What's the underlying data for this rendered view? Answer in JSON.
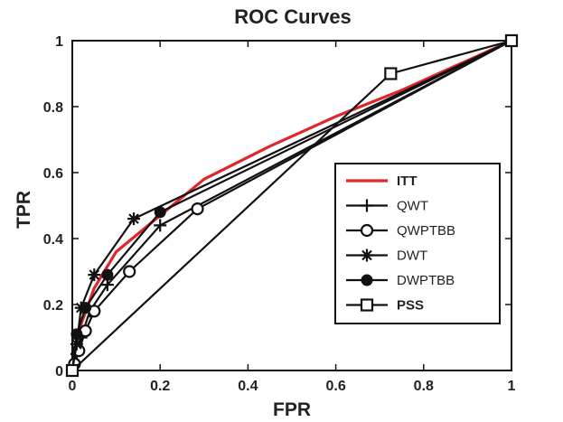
{
  "chart_data": {
    "type": "line",
    "title": "ROC Curves",
    "xlabel": "FPR",
    "ylabel": "TPR",
    "xlim": [
      0,
      1
    ],
    "ylim": [
      0,
      1
    ],
    "xticks": [
      "0",
      "0.2",
      "0.4",
      "0.6",
      "0.8",
      "1"
    ],
    "yticks": [
      "0",
      "0.2",
      "0.4",
      "0.6",
      "0.8",
      "1"
    ],
    "grid": false,
    "legend_position": "right",
    "series": [
      {
        "name": "ITT",
        "color": "#e0262b",
        "marker": "none",
        "bold": true,
        "x": [
          0,
          0.02,
          0.05,
          0.1,
          0.2,
          0.3,
          0.45,
          0.6,
          0.75,
          0.9,
          1
        ],
        "y": [
          0,
          0.14,
          0.25,
          0.36,
          0.47,
          0.58,
          0.68,
          0.77,
          0.85,
          0.94,
          1
        ]
      },
      {
        "name": "QWT",
        "color": "#111111",
        "marker": "plus",
        "bold": false,
        "x": [
          0,
          0.01,
          0.02,
          0.04,
          0.08,
          0.2,
          1
        ],
        "y": [
          0,
          0.05,
          0.1,
          0.18,
          0.26,
          0.44,
          1
        ]
      },
      {
        "name": "QWPTBB",
        "color": "#111111",
        "marker": "circle",
        "bold": false,
        "x": [
          0,
          0.005,
          0.015,
          0.03,
          0.05,
          0.13,
          0.285,
          1
        ],
        "y": [
          0,
          0.02,
          0.06,
          0.12,
          0.18,
          0.3,
          0.49,
          1
        ]
      },
      {
        "name": "DWT",
        "color": "#111111",
        "marker": "star",
        "bold": false,
        "x": [
          0,
          0.01,
          0.02,
          0.05,
          0.14,
          1
        ],
        "y": [
          0,
          0.08,
          0.19,
          0.29,
          0.46,
          1
        ]
      },
      {
        "name": "DWPTBB",
        "color": "#111111",
        "marker": "dot",
        "bold": false,
        "x": [
          0,
          0.01,
          0.03,
          0.08,
          0.2,
          1
        ],
        "y": [
          0,
          0.11,
          0.19,
          0.29,
          0.48,
          1
        ]
      },
      {
        "name": "PSS",
        "color": "#111111",
        "marker": "square",
        "bold": true,
        "x": [
          0,
          0.725,
          1
        ],
        "y": [
          0,
          0.9,
          1
        ]
      }
    ]
  }
}
